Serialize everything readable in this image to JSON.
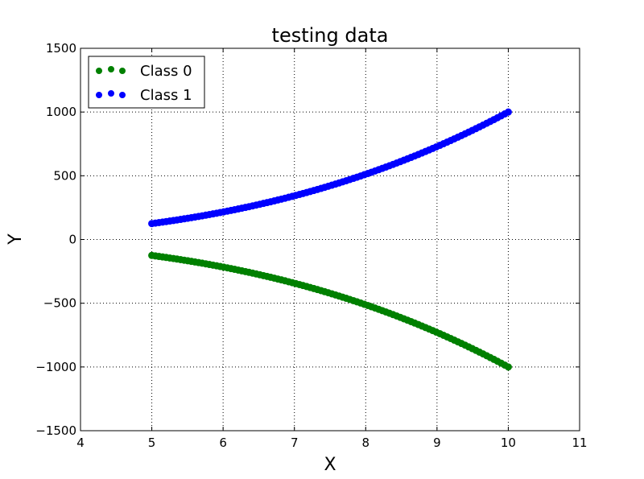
{
  "chart_data": {
    "type": "scatter",
    "title": "testing data",
    "xlabel": "X",
    "ylabel": "Y",
    "xlim": [
      4,
      11
    ],
    "ylim": [
      -1500,
      1500
    ],
    "xticks": [
      "4",
      "5",
      "6",
      "7",
      "8",
      "9",
      "10",
      "11"
    ],
    "yticks": [
      "−1500",
      "−1000",
      "−500",
      "0",
      "500",
      "1000",
      "1500"
    ],
    "grid": true,
    "legend": "top-left",
    "series": [
      {
        "name": "Class 0",
        "color": "#008000",
        "x_range": [
          5,
          10
        ],
        "sign": -1
      },
      {
        "name": "Class 1",
        "color": "#0000ff",
        "x_range": [
          5,
          10
        ],
        "sign": 1
      }
    ]
  }
}
